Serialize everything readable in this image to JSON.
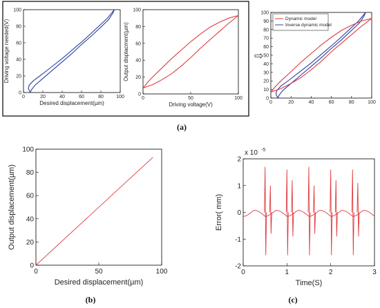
{
  "panel_labels": [
    "(a)",
    "(b)",
    "(c)"
  ],
  "colors": {
    "blue": "#2b3d9a",
    "red": "#e0393e",
    "frame": "#000000"
  },
  "arrow_glyph": "⇨",
  "chart_data": [
    {
      "id": "a1",
      "type": "line",
      "xlabel": "Desired displacement(µm)",
      "ylabel": "Driving voltage needed(V)",
      "xlim": [
        0,
        100
      ],
      "ylim": [
        0,
        100
      ],
      "xticks": [
        "0",
        "20",
        "40",
        "60",
        "80",
        "100"
      ],
      "yticks": [
        "0",
        "20",
        "40",
        "60",
        "80",
        "100"
      ],
      "series": [
        {
          "color": "blue",
          "points": [
            [
              7,
              0
            ],
            [
              8,
              3
            ],
            [
              12,
              9
            ],
            [
              20,
              17
            ],
            [
              30,
              27
            ],
            [
              40,
              37
            ],
            [
              50,
              47
            ],
            [
              60,
              58
            ],
            [
              70,
              68
            ],
            [
              80,
              79
            ],
            [
              88,
              88
            ],
            [
              92,
              95
            ],
            [
              94,
              100
            ]
          ]
        },
        {
          "color": "blue",
          "points": [
            [
              94,
              100
            ],
            [
              87,
              90
            ],
            [
              76,
              78
            ],
            [
              64,
              65
            ],
            [
              52,
              53
            ],
            [
              40,
              41
            ],
            [
              28,
              30
            ],
            [
              18,
              21
            ],
            [
              10,
              14
            ],
            [
              6,
              9
            ],
            [
              5,
              5
            ],
            [
              7,
              0
            ]
          ]
        }
      ]
    },
    {
      "id": "a2",
      "type": "line",
      "xlabel": "Driving voltage(V)",
      "ylabel": "Output displacment(µm)",
      "xlim": [
        0,
        100
      ],
      "ylim": [
        0,
        100
      ],
      "xticks": [
        "0",
        "50",
        "100"
      ],
      "yticks": [
        "0",
        "20",
        "40",
        "60",
        "80",
        "100"
      ],
      "series": [
        {
          "color": "red",
          "points": [
            [
              0,
              7
            ],
            [
              10,
              11
            ],
            [
              20,
              17
            ],
            [
              30,
              24
            ],
            [
              40,
              33
            ],
            [
              50,
              43
            ],
            [
              60,
              54
            ],
            [
              70,
              64
            ],
            [
              80,
              74
            ],
            [
              90,
              84
            ],
            [
              100,
              93
            ]
          ]
        },
        {
          "color": "red",
          "points": [
            [
              100,
              93
            ],
            [
              90,
              90
            ],
            [
              80,
              85
            ],
            [
              70,
              79
            ],
            [
              60,
              71
            ],
            [
              50,
              62
            ],
            [
              40,
              52
            ],
            [
              30,
              42
            ],
            [
              20,
              31
            ],
            [
              10,
              20
            ],
            [
              5,
              14
            ],
            [
              0,
              7
            ]
          ]
        }
      ]
    },
    {
      "id": "a3",
      "type": "line",
      "xlim": [
        0,
        100
      ],
      "ylim": [
        0,
        100
      ],
      "xticks": [
        "0",
        "20",
        "40",
        "60",
        "80",
        "100"
      ],
      "yticks": [
        "0",
        "10",
        "20",
        "30",
        "40",
        "50",
        "60",
        "70",
        "80",
        "90",
        "100"
      ],
      "legend": [
        {
          "label": "Dynamic model",
          "color": "red"
        },
        {
          "label": "Inverse dynamic model",
          "color": "blue"
        }
      ],
      "legend_position": "top-left",
      "series": [
        {
          "color": "blue",
          "points": [
            [
              7,
              0
            ],
            [
              8,
              3
            ],
            [
              12,
              9
            ],
            [
              20,
              17
            ],
            [
              30,
              27
            ],
            [
              40,
              37
            ],
            [
              50,
              47
            ],
            [
              60,
              58
            ],
            [
              70,
              68
            ],
            [
              80,
              79
            ],
            [
              88,
              88
            ],
            [
              92,
              95
            ],
            [
              94,
              100
            ]
          ]
        },
        {
          "color": "blue",
          "points": [
            [
              94,
              100
            ],
            [
              87,
              90
            ],
            [
              76,
              78
            ],
            [
              64,
              65
            ],
            [
              52,
              53
            ],
            [
              40,
              41
            ],
            [
              28,
              30
            ],
            [
              18,
              21
            ],
            [
              10,
              14
            ],
            [
              6,
              9
            ],
            [
              5,
              5
            ],
            [
              7,
              0
            ]
          ]
        },
        {
          "color": "red",
          "points": [
            [
              0,
              7
            ],
            [
              10,
              11
            ],
            [
              20,
              17
            ],
            [
              30,
              24
            ],
            [
              40,
              33
            ],
            [
              50,
              43
            ],
            [
              60,
              54
            ],
            [
              70,
              64
            ],
            [
              80,
              74
            ],
            [
              90,
              84
            ],
            [
              100,
              93
            ]
          ]
        },
        {
          "color": "red",
          "points": [
            [
              100,
              93
            ],
            [
              90,
              90
            ],
            [
              80,
              85
            ],
            [
              70,
              79
            ],
            [
              60,
              71
            ],
            [
              50,
              62
            ],
            [
              40,
              52
            ],
            [
              30,
              42
            ],
            [
              20,
              31
            ],
            [
              10,
              20
            ],
            [
              5,
              14
            ],
            [
              0,
              7
            ]
          ]
        }
      ]
    },
    {
      "id": "b",
      "type": "line",
      "xlabel": "Desired displacement(µm)",
      "ylabel": "Output displacement(µm)",
      "xlim": [
        0,
        100
      ],
      "ylim": [
        0,
        100
      ],
      "xticks": [
        "0",
        "50",
        "100"
      ],
      "yticks": [
        "0",
        "20",
        "40",
        "60",
        "80",
        "100"
      ],
      "series": [
        {
          "color": "red",
          "points": [
            [
              0,
              0
            ],
            [
              93,
              93
            ]
          ]
        }
      ]
    },
    {
      "id": "c",
      "type": "line",
      "xlabel": "Time(S)",
      "ylabel": "Error( mm)",
      "exponent_label": "x 10",
      "exponent_power": "-5",
      "xlim": [
        0,
        3
      ],
      "ylim": [
        -2,
        2
      ],
      "xticks": [
        "0",
        "1",
        "2",
        "3"
      ],
      "yticks": [
        "-2",
        "-1",
        "0",
        "1",
        "2"
      ],
      "spike_times": [
        0.5,
        0.62,
        1.0,
        1.12,
        1.5,
        1.62,
        2.0,
        2.12,
        2.5,
        2.62
      ],
      "spike_peaks": [
        [
          1.7,
          -1.6
        ],
        [
          1.0,
          -0.8
        ],
        [
          1.6,
          -1.6
        ],
        [
          1.2,
          -0.9
        ],
        [
          1.7,
          -1.6
        ],
        [
          1.0,
          -0.8
        ],
        [
          1.6,
          -1.6
        ],
        [
          1.2,
          -0.9
        ],
        [
          1.6,
          -1.6
        ],
        [
          1.1,
          -0.9
        ]
      ],
      "baseline": {
        "amplitude": 0.15,
        "period": 0.5
      },
      "series": [
        {
          "color": "red"
        }
      ]
    }
  ]
}
